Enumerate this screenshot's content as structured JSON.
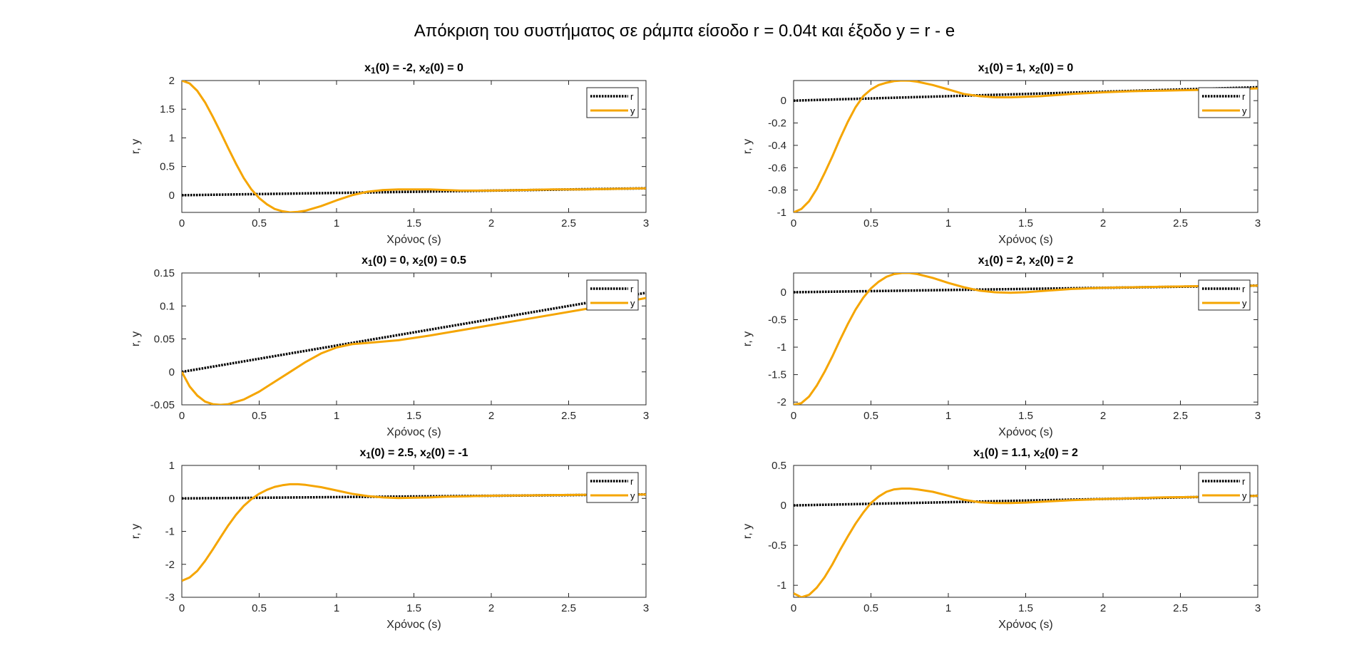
{
  "figure": {
    "suptitle": "Απόκριση του συστήματος σε ράμπα είσοδο r = 0.04t και έξοδο y = r - e"
  },
  "colors": {
    "r": "#000000",
    "y": "#F5A500",
    "axes": "#262626"
  },
  "chart_data": [
    {
      "type": "line",
      "title": "x1(0) = -2, x2(0) = 0",
      "title_parts": [
        "x",
        "1",
        "(0) = -2, x",
        "2",
        "(0) = 0"
      ],
      "xlabel": "Χρόνος (s)",
      "ylabel": "r, y",
      "xlim": [
        0,
        3
      ],
      "ylim": [
        -0.3,
        2
      ],
      "xticks": [
        0,
        0.5,
        1,
        1.5,
        2,
        2.5,
        3
      ],
      "xtick_labels": [
        "0",
        "0.5",
        "1",
        "1.5",
        "2",
        "2.5",
        "3"
      ],
      "yticks": [
        0,
        0.5,
        1,
        1.5,
        2
      ],
      "ytick_labels": [
        "0",
        "0.5",
        "1",
        "1.5",
        "2"
      ],
      "legend": {
        "location": "top-right",
        "entries": [
          "r",
          "y"
        ]
      },
      "series": [
        {
          "name": "r",
          "style": "dotted",
          "x": [
            0,
            3
          ],
          "y": [
            0,
            0.12
          ]
        },
        {
          "name": "y",
          "style": "solid",
          "x": [
            0,
            0.05,
            0.1,
            0.15,
            0.2,
            0.25,
            0.3,
            0.35,
            0.4,
            0.45,
            0.5,
            0.55,
            0.6,
            0.65,
            0.7,
            0.75,
            0.8,
            0.9,
            1.0,
            1.1,
            1.2,
            1.3,
            1.4,
            1.5,
            1.6,
            1.7,
            1.8,
            1.9,
            2.0,
            2.2,
            2.4,
            2.6,
            2.8,
            3.0
          ],
          "y": [
            2.0,
            1.95,
            1.82,
            1.62,
            1.37,
            1.1,
            0.82,
            0.55,
            0.3,
            0.1,
            -0.05,
            -0.16,
            -0.24,
            -0.28,
            -0.3,
            -0.29,
            -0.27,
            -0.19,
            -0.09,
            0.0,
            0.06,
            0.09,
            0.1,
            0.1,
            0.1,
            0.09,
            0.08,
            0.08,
            0.08,
            0.09,
            0.1,
            0.1,
            0.11,
            0.12
          ]
        }
      ]
    },
    {
      "type": "line",
      "title": "x1(0) = 1, x2(0) = 0",
      "title_parts": [
        "x",
        "1",
        "(0) = 1, x",
        "2",
        "(0) = 0"
      ],
      "xlabel": "Χρόνος (s)",
      "ylabel": "r, y",
      "xlim": [
        0,
        3
      ],
      "ylim": [
        -1,
        0.18
      ],
      "xticks": [
        0,
        0.5,
        1,
        1.5,
        2,
        2.5,
        3
      ],
      "xtick_labels": [
        "0",
        "0.5",
        "1",
        "1.5",
        "2",
        "2.5",
        "3"
      ],
      "yticks": [
        -1,
        -0.8,
        -0.6,
        -0.4,
        -0.2,
        0
      ],
      "ytick_labels": [
        "-1",
        "-0.8",
        "-0.6",
        "-0.4",
        "-0.2",
        "0"
      ],
      "legend": {
        "location": "top-right",
        "entries": [
          "r",
          "y"
        ]
      },
      "series": [
        {
          "name": "r",
          "style": "dotted",
          "x": [
            0,
            3
          ],
          "y": [
            0,
            0.12
          ]
        },
        {
          "name": "y",
          "style": "solid",
          "x": [
            0,
            0.05,
            0.1,
            0.15,
            0.2,
            0.25,
            0.3,
            0.35,
            0.4,
            0.45,
            0.5,
            0.55,
            0.6,
            0.65,
            0.7,
            0.75,
            0.8,
            0.9,
            1.0,
            1.1,
            1.2,
            1.3,
            1.4,
            1.5,
            1.6,
            1.7,
            1.8,
            2.0,
            2.2,
            2.4,
            2.6,
            2.8,
            3.0
          ],
          "y": [
            -1.0,
            -0.97,
            -0.9,
            -0.79,
            -0.65,
            -0.5,
            -0.34,
            -0.19,
            -0.06,
            0.04,
            0.1,
            0.14,
            0.16,
            0.175,
            0.18,
            0.178,
            0.17,
            0.14,
            0.1,
            0.06,
            0.04,
            0.03,
            0.03,
            0.035,
            0.04,
            0.05,
            0.06,
            0.075,
            0.085,
            0.09,
            0.095,
            0.1,
            0.11
          ]
        }
      ]
    },
    {
      "type": "line",
      "title": "x1(0) = 0, x2(0) = 0.5",
      "title_parts": [
        "x",
        "1",
        "(0) = 0, x",
        "2",
        "(0) = 0.5"
      ],
      "xlabel": "Χρόνος (s)",
      "ylabel": "r, y",
      "xlim": [
        0,
        3
      ],
      "ylim": [
        -0.05,
        0.15
      ],
      "xticks": [
        0,
        0.5,
        1,
        1.5,
        2,
        2.5,
        3
      ],
      "xtick_labels": [
        "0",
        "0.5",
        "1",
        "1.5",
        "2",
        "2.5",
        "3"
      ],
      "yticks": [
        -0.05,
        0,
        0.05,
        0.1,
        0.15
      ],
      "ytick_labels": [
        "-0.05",
        "0",
        "0.05",
        "0.1",
        "0.15"
      ],
      "legend": {
        "location": "top-right",
        "entries": [
          "r",
          "y"
        ]
      },
      "series": [
        {
          "name": "r",
          "style": "dotted",
          "x": [
            0,
            3
          ],
          "y": [
            0,
            0.12
          ]
        },
        {
          "name": "y",
          "style": "solid",
          "x": [
            0,
            0.05,
            0.1,
            0.15,
            0.2,
            0.25,
            0.3,
            0.4,
            0.5,
            0.6,
            0.7,
            0.8,
            0.9,
            1.0,
            1.1,
            1.2,
            1.4,
            1.6,
            1.8,
            2.0,
            2.2,
            2.4,
            2.6,
            2.8,
            3.0
          ],
          "y": [
            0.0,
            -0.022,
            -0.036,
            -0.045,
            -0.049,
            -0.05,
            -0.049,
            -0.042,
            -0.03,
            -0.015,
            0.0,
            0.015,
            0.028,
            0.037,
            0.042,
            0.044,
            0.048,
            0.055,
            0.063,
            0.071,
            0.079,
            0.087,
            0.095,
            0.103,
            0.112
          ]
        }
      ]
    },
    {
      "type": "line",
      "title": "x1(0) = 2, x2(0) = 2",
      "title_parts": [
        "x",
        "1",
        "(0) = 2, x",
        "2",
        "(0) = 2"
      ],
      "xlabel": "Χρόνος (s)",
      "ylabel": "r, y",
      "xlim": [
        0,
        3
      ],
      "ylim": [
        -2.05,
        0.35
      ],
      "xticks": [
        0,
        0.5,
        1,
        1.5,
        2,
        2.5,
        3
      ],
      "xtick_labels": [
        "0",
        "0.5",
        "1",
        "1.5",
        "2",
        "2.5",
        "3"
      ],
      "yticks": [
        -2,
        -1.5,
        -1,
        -0.5,
        0
      ],
      "ytick_labels": [
        "-2",
        "-1.5",
        "-1",
        "-0.5",
        "0"
      ],
      "legend": {
        "location": "top-right",
        "entries": [
          "r",
          "y"
        ]
      },
      "series": [
        {
          "name": "r",
          "style": "dotted",
          "x": [
            0,
            3
          ],
          "y": [
            0,
            0.12
          ]
        },
        {
          "name": "y",
          "style": "solid",
          "x": [
            0,
            0.05,
            0.1,
            0.15,
            0.2,
            0.25,
            0.3,
            0.35,
            0.4,
            0.45,
            0.5,
            0.55,
            0.6,
            0.65,
            0.7,
            0.75,
            0.8,
            0.9,
            1.0,
            1.1,
            1.2,
            1.3,
            1.4,
            1.5,
            1.6,
            1.7,
            1.8,
            2.0,
            2.2,
            2.4,
            2.6,
            2.8,
            3.0
          ],
          "y": [
            -2.05,
            -2.02,
            -1.9,
            -1.7,
            -1.45,
            -1.17,
            -0.87,
            -0.58,
            -0.32,
            -0.1,
            0.07,
            0.19,
            0.28,
            0.33,
            0.35,
            0.35,
            0.33,
            0.26,
            0.17,
            0.09,
            0.03,
            0.0,
            -0.01,
            0.0,
            0.02,
            0.04,
            0.06,
            0.08,
            0.09,
            0.1,
            0.11,
            0.11,
            0.12
          ]
        }
      ]
    },
    {
      "type": "line",
      "title": "x1(0) = 2.5, x2(0) = -1",
      "title_parts": [
        "x",
        "1",
        "(0) = 2.5, x",
        "2",
        "(0) = -1"
      ],
      "xlabel": "Χρόνος (s)",
      "ylabel": "r, y",
      "xlim": [
        0,
        3
      ],
      "ylim": [
        -3,
        1
      ],
      "xticks": [
        0,
        0.5,
        1,
        1.5,
        2,
        2.5,
        3
      ],
      "xtick_labels": [
        "0",
        "0.5",
        "1",
        "1.5",
        "2",
        "2.5",
        "3"
      ],
      "yticks": [
        -3,
        -2,
        -1,
        0,
        1
      ],
      "ytick_labels": [
        "-3",
        "-2",
        "-1",
        "0",
        "1"
      ],
      "legend": {
        "location": "top-right",
        "entries": [
          "r",
          "y"
        ]
      },
      "series": [
        {
          "name": "r",
          "style": "dotted",
          "x": [
            0,
            3
          ],
          "y": [
            0,
            0.12
          ]
        },
        {
          "name": "y",
          "style": "solid",
          "x": [
            0,
            0.05,
            0.1,
            0.15,
            0.2,
            0.25,
            0.3,
            0.35,
            0.4,
            0.45,
            0.5,
            0.55,
            0.6,
            0.65,
            0.7,
            0.75,
            0.8,
            0.9,
            1.0,
            1.1,
            1.2,
            1.3,
            1.4,
            1.5,
            1.6,
            1.7,
            1.8,
            2.0,
            2.2,
            2.4,
            2.6,
            2.8,
            3.0
          ],
          "y": [
            -2.5,
            -2.4,
            -2.2,
            -1.9,
            -1.55,
            -1.18,
            -0.82,
            -0.5,
            -0.23,
            -0.02,
            0.14,
            0.26,
            0.35,
            0.4,
            0.43,
            0.43,
            0.41,
            0.34,
            0.24,
            0.14,
            0.07,
            0.03,
            0.01,
            0.02,
            0.03,
            0.05,
            0.06,
            0.08,
            0.09,
            0.1,
            0.11,
            0.11,
            0.12
          ]
        }
      ]
    },
    {
      "type": "line",
      "title": "x1(0) = 1.1, x2(0) = 2",
      "title_parts": [
        "x",
        "1",
        "(0) = 1.1, x",
        "2",
        "(0) = 2"
      ],
      "xlabel": "Χρόνος (s)",
      "ylabel": "r, y",
      "xlim": [
        0,
        3
      ],
      "ylim": [
        -1.15,
        0.5
      ],
      "xticks": [
        0,
        0.5,
        1,
        1.5,
        2,
        2.5,
        3
      ],
      "xtick_labels": [
        "0",
        "0.5",
        "1",
        "1.5",
        "2",
        "2.5",
        "3"
      ],
      "yticks": [
        -1,
        -0.5,
        0,
        0.5
      ],
      "ytick_labels": [
        "-1",
        "-0.5",
        "0",
        "0.5"
      ],
      "legend": {
        "location": "top-right",
        "entries": [
          "r",
          "y"
        ]
      },
      "series": [
        {
          "name": "r",
          "style": "dotted",
          "x": [
            0,
            3
          ],
          "y": [
            0,
            0.12
          ]
        },
        {
          "name": "y",
          "style": "solid",
          "x": [
            0,
            0.05,
            0.1,
            0.15,
            0.2,
            0.25,
            0.3,
            0.35,
            0.4,
            0.45,
            0.5,
            0.55,
            0.6,
            0.65,
            0.7,
            0.75,
            0.8,
            0.9,
            1.0,
            1.1,
            1.2,
            1.3,
            1.4,
            1.5,
            1.6,
            1.7,
            1.8,
            2.0,
            2.2,
            2.4,
            2.6,
            2.8,
            3.0
          ],
          "y": [
            -1.1,
            -1.15,
            -1.12,
            -1.03,
            -0.9,
            -0.74,
            -0.56,
            -0.39,
            -0.23,
            -0.09,
            0.03,
            0.11,
            0.17,
            0.2,
            0.21,
            0.21,
            0.2,
            0.17,
            0.12,
            0.07,
            0.04,
            0.03,
            0.03,
            0.035,
            0.045,
            0.055,
            0.065,
            0.08,
            0.09,
            0.1,
            0.105,
            0.11,
            0.12
          ]
        }
      ]
    }
  ]
}
